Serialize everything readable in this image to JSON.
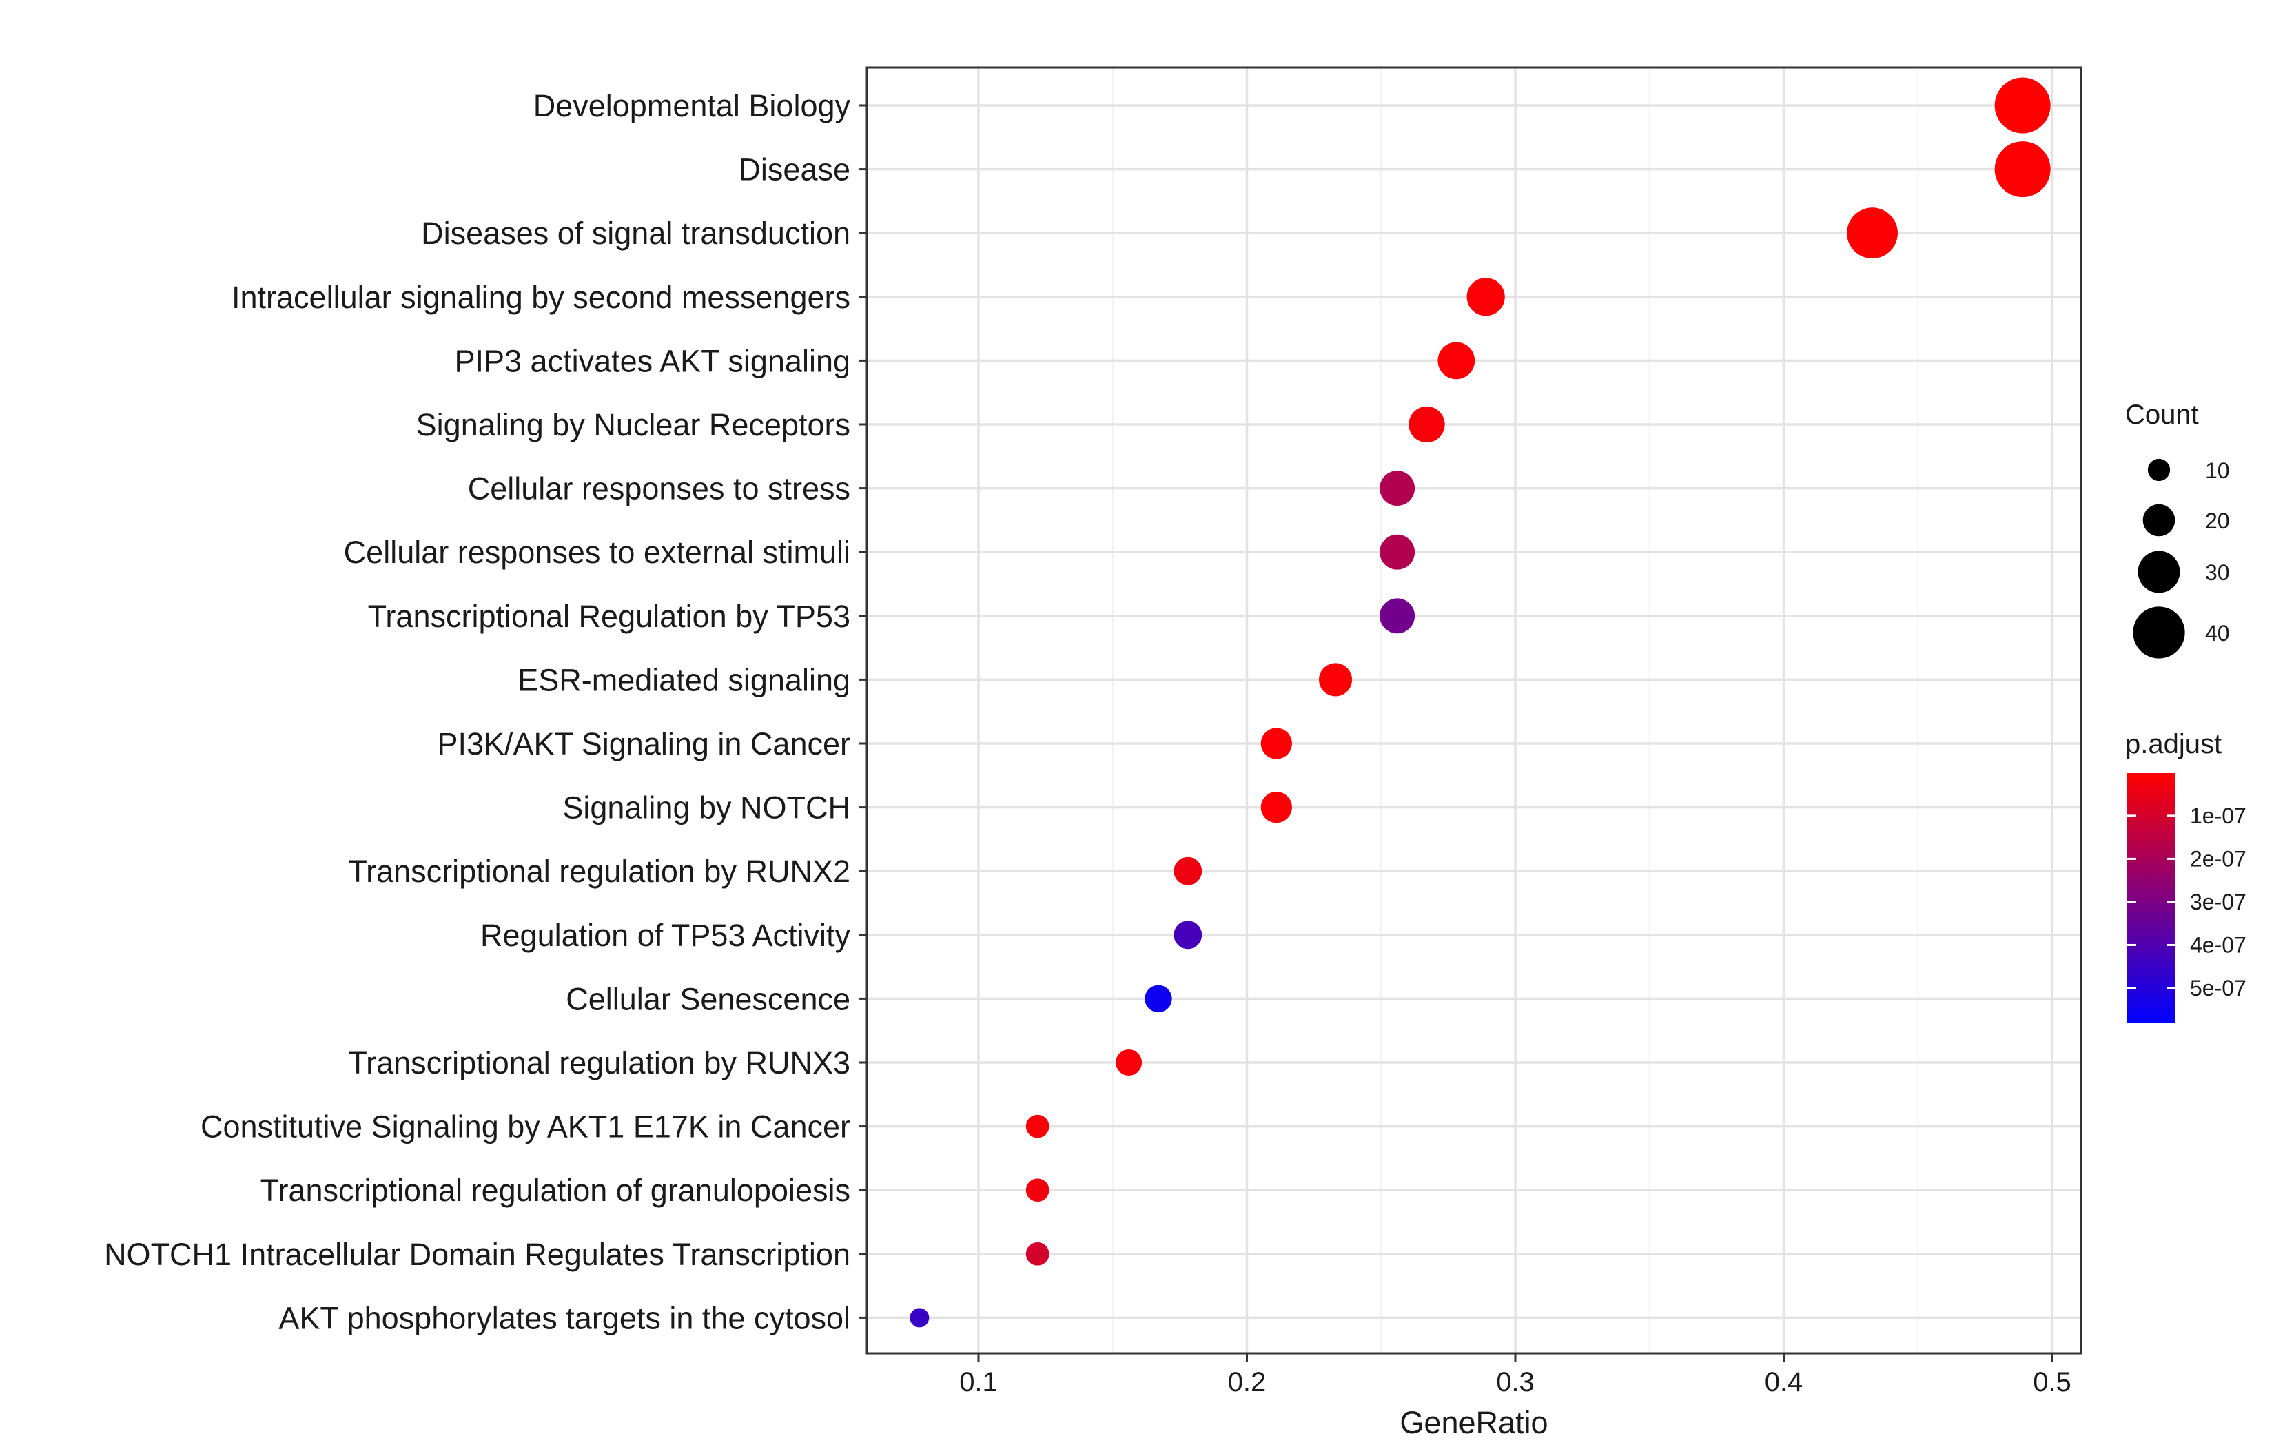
{
  "chart_data": {
    "type": "scatter",
    "title": "",
    "xlabel": "GeneRatio",
    "ylabel": "",
    "xlim": [
      0.058,
      0.511
    ],
    "xticks": [
      0.1,
      0.2,
      0.3,
      0.4,
      0.5
    ],
    "xtick_labels": [
      "0.1",
      "0.2",
      "0.3",
      "0.4",
      "0.5"
    ],
    "grid": true,
    "legend_position": "right",
    "color_scale": {
      "low": "#0000ff",
      "high": "#ff0000"
    },
    "categories": [
      "Developmental Biology",
      "Disease",
      "Diseases of signal transduction",
      "Intracellular signaling by second messengers",
      "PIP3 activates AKT signaling",
      "Signaling by Nuclear Receptors",
      "Cellular responses to stress",
      "Cellular responses to external stimuli",
      "Transcriptional Regulation by TP53",
      "ESR-mediated signaling",
      "PI3K/AKT Signaling in Cancer",
      "Signaling by NOTCH",
      "Transcriptional regulation by RUNX2",
      "Regulation of TP53 Activity",
      "Cellular Senescence",
      "Transcriptional regulation by RUNX3",
      "Constitutive Signaling by AKT1 E17K in Cancer",
      "Transcriptional regulation of granulopoiesis",
      "NOTCH1 Intracellular Domain Regulates Transcription",
      "AKT phosphorylates targets in the cytosol"
    ],
    "points": [
      {
        "y": "Developmental Biology",
        "x": 0.489,
        "count": 44,
        "p_adjust": 2e-09
      },
      {
        "y": "Disease",
        "x": 0.489,
        "count": 44,
        "p_adjust": 5e-09
      },
      {
        "y": "Diseases of signal transduction",
        "x": 0.433,
        "count": 39,
        "p_adjust": 5e-09
      },
      {
        "y": "Intracellular signaling by second messengers",
        "x": 0.289,
        "count": 26,
        "p_adjust": 1e-08
      },
      {
        "y": "PIP3 activates AKT signaling",
        "x": 0.278,
        "count": 25,
        "p_adjust": 1e-08
      },
      {
        "y": "Signaling by Nuclear Receptors",
        "x": 0.267,
        "count": 24,
        "p_adjust": 2e-08
      },
      {
        "y": "Cellular responses to stress",
        "x": 0.256,
        "count": 23,
        "p_adjust": 1.8e-07
      },
      {
        "y": "Cellular responses to external stimuli",
        "x": 0.256,
        "count": 23,
        "p_adjust": 1.8e-07
      },
      {
        "y": "Transcriptional Regulation by TP53",
        "x": 0.256,
        "count": 23,
        "p_adjust": 3.2e-07
      },
      {
        "y": "ESR-mediated signaling",
        "x": 0.233,
        "count": 21,
        "p_adjust": 1e-08
      },
      {
        "y": "PI3K/AKT Signaling in Cancer",
        "x": 0.211,
        "count": 19,
        "p_adjust": 1e-08
      },
      {
        "y": "Signaling by NOTCH",
        "x": 0.211,
        "count": 19,
        "p_adjust": 1e-08
      },
      {
        "y": "Transcriptional regulation by RUNX2",
        "x": 0.178,
        "count": 16,
        "p_adjust": 4e-08
      },
      {
        "y": "Regulation of TP53 Activity",
        "x": 0.178,
        "count": 16,
        "p_adjust": 4.2e-07
      },
      {
        "y": "Cellular Senescence",
        "x": 0.167,
        "count": 15,
        "p_adjust": 5.5e-07
      },
      {
        "y": "Transcriptional regulation by RUNX3",
        "x": 0.156,
        "count": 14,
        "p_adjust": 2e-08
      },
      {
        "y": "Constitutive Signaling by AKT1 E17K in Cancer",
        "x": 0.122,
        "count": 11,
        "p_adjust": 2e-08
      },
      {
        "y": "Transcriptional regulation of granulopoiesis",
        "x": 0.122,
        "count": 11,
        "p_adjust": 3e-08
      },
      {
        "y": "NOTCH1 Intracellular Domain Regulates Transcription",
        "x": 0.122,
        "count": 11,
        "p_adjust": 1e-07
      },
      {
        "y": "AKT phosphorylates targets in the cytosol",
        "x": 0.078,
        "count": 7,
        "p_adjust": 4.5e-07
      }
    ],
    "size_legend": {
      "title": "Count",
      "values": [
        10,
        20,
        30,
        40
      ],
      "labels": [
        "10",
        "20",
        "30",
        "40"
      ]
    },
    "color_legend": {
      "title": "p.adjust",
      "range": [
        1e-09,
        5.8e-07
      ],
      "values": [
        1e-07,
        2e-07,
        3e-07,
        4e-07,
        5e-07
      ],
      "labels": [
        "1e-07",
        "2e-07",
        "3e-07",
        "4e-07",
        "5e-07"
      ]
    }
  }
}
